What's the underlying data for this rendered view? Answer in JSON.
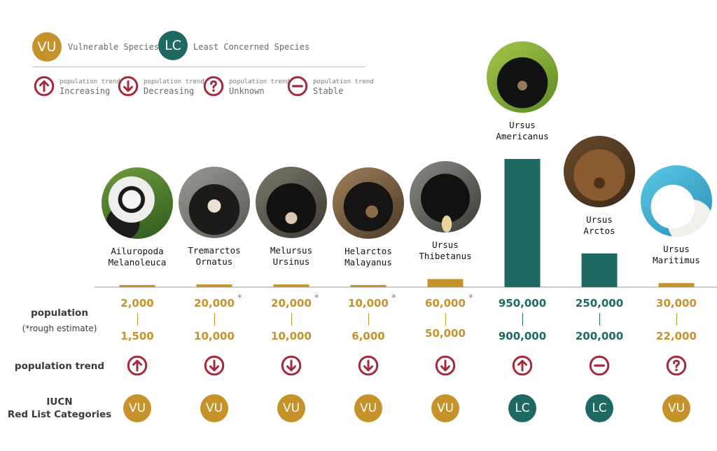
{
  "colors": {
    "vu": "#c6922a",
    "lc": "#1f6963",
    "trend": "#a52a3c",
    "axis": "#999999"
  },
  "legend": {
    "vu": {
      "badge": "VU",
      "label": "Vulnerable Species"
    },
    "lc": {
      "badge": "LC",
      "label": "Least Concerned Species"
    },
    "trends": [
      {
        "icon": "arrow-up-circle-icon",
        "small": "population trend",
        "big": "Increasing"
      },
      {
        "icon": "arrow-down-circle-icon",
        "small": "population trend",
        "big": "Decreasing"
      },
      {
        "icon": "question-circle-icon",
        "small": "population trend",
        "big": "Unknown"
      },
      {
        "icon": "minus-circle-icon",
        "small": "population trend",
        "big": "Stable"
      }
    ]
  },
  "row_labels": {
    "population": "population",
    "population_note": "(*rough estimate)",
    "trend": "population trend",
    "iucn_1": "IUCN",
    "iucn_2": "Red List Categories"
  },
  "chart_data": {
    "type": "bar",
    "categories": [
      "Ailuropoda Melanoleuca",
      "Tremarctos Ornatus",
      "Melursus Ursinus",
      "Helarctos Malayanus",
      "Ursus Thibetanus",
      "Ursus Americanus",
      "Ursus Arctos",
      "Ursus Maritimus"
    ],
    "bars": [
      {
        "name1": "Ailuropoda",
        "name2": "Melanoleuca",
        "high": "2,000",
        "low": "1,500",
        "rough": "",
        "trend": "up",
        "iucn": "VU",
        "value": 2000,
        "photo": "panda"
      },
      {
        "name1": "Tremarctos",
        "name2": "Ornatus",
        "high": "20,000",
        "low": "10,000",
        "rough": "*",
        "trend": "down",
        "iucn": "VU",
        "value": 20000,
        "photo": "spectacled"
      },
      {
        "name1": "Melursus",
        "name2": "Ursinus",
        "high": "20,000",
        "low": "10,000",
        "rough": "*",
        "trend": "down",
        "iucn": "VU",
        "value": 20000,
        "photo": "sloth"
      },
      {
        "name1": "Helarctos",
        "name2": "Malayanus",
        "high": "10,000",
        "low": "6,000",
        "rough": "*",
        "trend": "down",
        "iucn": "VU",
        "value": 10000,
        "photo": "sun"
      },
      {
        "name1": "Ursus",
        "name2": "Thibetanus",
        "high": "60,000",
        "low": "50,000",
        "rough": "*",
        "trend": "down",
        "iucn": "VU",
        "value": 60000,
        "photo": "moon"
      },
      {
        "name1": "Ursus",
        "name2": "Americanus",
        "high": "950,000",
        "low": "900,000",
        "rough": "",
        "trend": "up",
        "iucn": "LC",
        "value": 950000,
        "photo": "black"
      },
      {
        "name1": "Ursus",
        "name2": "Arctos",
        "high": "250,000",
        "low": "200,000",
        "rough": "",
        "trend": "stable",
        "iucn": "LC",
        "value": 250000,
        "photo": "brown"
      },
      {
        "name1": "Ursus",
        "name2": "Maritimus",
        "high": "30,000",
        "low": "22,000",
        "rough": "",
        "trend": "unknown",
        "iucn": "VU",
        "value": 30000,
        "photo": "polar"
      }
    ],
    "ylim": [
      0,
      950000
    ]
  }
}
